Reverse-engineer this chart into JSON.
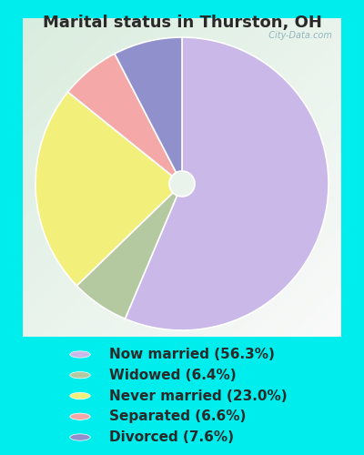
{
  "title": "Marital status in Thurston, OH",
  "slices": [
    56.3,
    6.4,
    23.0,
    6.6,
    7.6
  ],
  "labels": [
    "Now married (56.3%)",
    "Widowed (6.4%)",
    "Never married (23.0%)",
    "Separated (6.6%)",
    "Divorced (7.6%)"
  ],
  "colors": [
    "#c9b8e8",
    "#b5c9a0",
    "#f2f07a",
    "#f4a8a8",
    "#9090cc"
  ],
  "bg_outer": "#00eded",
  "bg_chart_tl": "#dff0e8",
  "bg_chart_br": "#f5faf5",
  "title_color": "#2a2a2a",
  "title_fontsize": 13,
  "legend_fontsize": 11,
  "watermark": "City-Data.com",
  "donut_width": 0.42,
  "startangle": 90
}
